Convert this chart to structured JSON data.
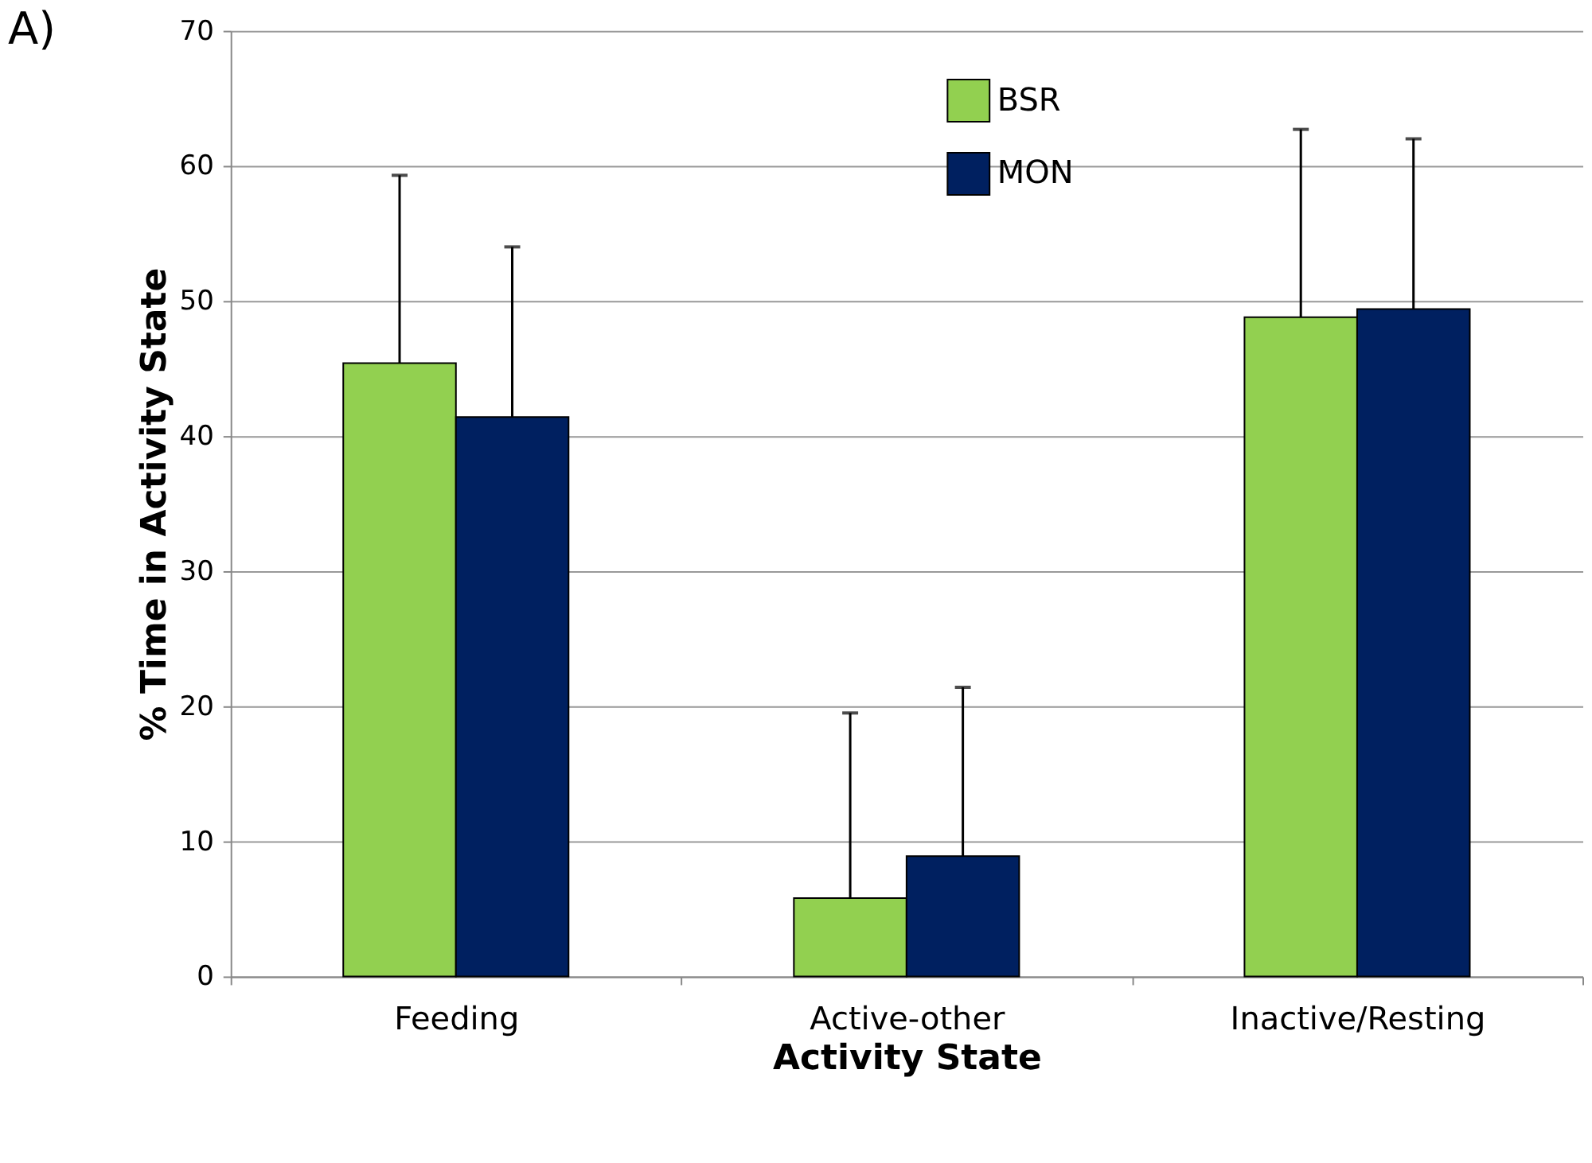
{
  "chart_data": {
    "type": "bar",
    "xlabel": "Activity State",
    "ylabel": "% Time in Activity State",
    "categories": [
      "Feeding",
      "Active-other",
      "Inactive/Resting"
    ],
    "series": [
      {
        "name": "BSR",
        "color": "#92d050",
        "values": [
          45.4,
          5.8,
          48.8
        ],
        "errors": [
          [
            45.4,
            59.3
          ],
          [
            5.8,
            19.5
          ],
          [
            48.8,
            62.7
          ]
        ]
      },
      {
        "name": "MON",
        "color": "#002060",
        "values": [
          41.4,
          8.9,
          49.4
        ],
        "errors": [
          [
            41.4,
            54.0
          ],
          [
            8.9,
            21.4
          ],
          [
            49.4,
            62.0
          ]
        ]
      }
    ],
    "ylim": [
      0,
      70
    ],
    "yticks": [
      0,
      10,
      20,
      30,
      40,
      50,
      60,
      70
    ],
    "grid": "y",
    "legend": "top",
    "annotations": [
      "A)"
    ]
  }
}
